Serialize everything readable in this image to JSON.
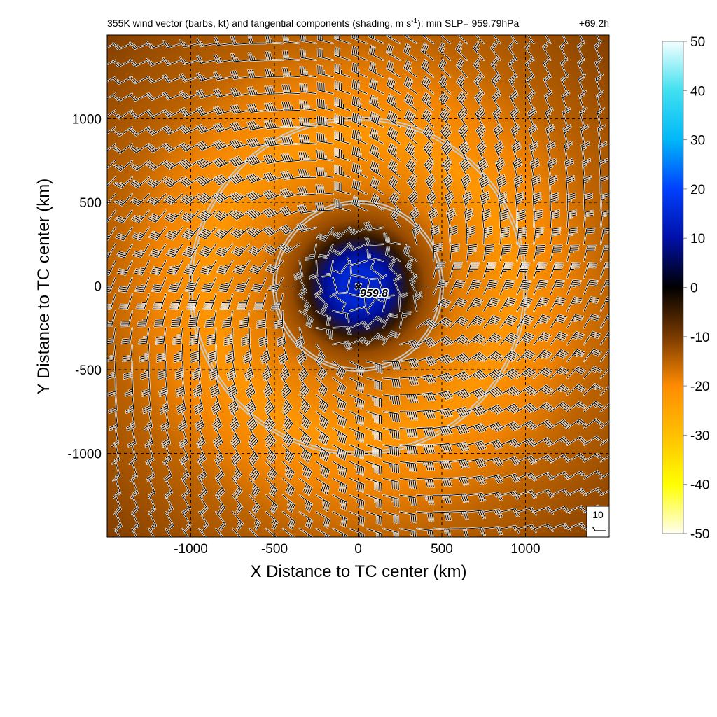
{
  "figure": {
    "title_main": "355K wind vector (barbs, kt) and tangential components (shading, m s",
    "title_sup": "-1",
    "title_end": "); min SLP= 959.79hPa",
    "time_label": "+69.2h"
  },
  "chart_data": {
    "type": "heatmap",
    "title": "355K wind vector (barbs, kt) and tangential components (shading, m s-1); min SLP= 959.79hPa",
    "xlabel": "X Distance to TC center (km)",
    "ylabel": "Y Distance to TC center (km)",
    "xlim": [
      -1500,
      1500
    ],
    "ylim": [
      -1500,
      1500
    ],
    "xticks": [
      -1000,
      -500,
      0,
      500,
      1000
    ],
    "yticks": [
      1000,
      500,
      0,
      -500,
      -1000
    ],
    "xtick_labels": [
      "-1000",
      "-500",
      "0",
      "500",
      "1000"
    ],
    "ytick_labels": [
      "1000",
      "500",
      "0",
      "-500",
      "-1000"
    ],
    "grid": true,
    "grid_style": "dashed",
    "range_rings_km": [
      500,
      1000
    ],
    "center_marker": {
      "x": 0,
      "y": 0,
      "label": "959.8"
    },
    "colorbar": {
      "min": -50,
      "max": 50,
      "ticks": [
        50,
        40,
        30,
        20,
        10,
        0,
        -10,
        -20,
        -30,
        -40,
        -50
      ],
      "tick_labels": [
        "50",
        "40",
        "30",
        "20",
        "10",
        "0",
        "-10",
        "-20",
        "-30",
        "-40",
        "-50"
      ],
      "stops": [
        {
          "v": 50,
          "c": "#f4ffff"
        },
        {
          "v": 40,
          "c": "#40e0f0"
        },
        {
          "v": 30,
          "c": "#00b8f8"
        },
        {
          "v": 20,
          "c": "#0040ff"
        },
        {
          "v": 10,
          "c": "#0010a8"
        },
        {
          "v": 0,
          "c": "#000000"
        },
        {
          "v": -10,
          "c": "#7a3a00"
        },
        {
          "v": -20,
          "c": "#ff8c00"
        },
        {
          "v": -30,
          "c": "#ffc000"
        },
        {
          "v": -40,
          "c": "#ffff00"
        },
        {
          "v": -50,
          "c": "#fffef0"
        }
      ]
    },
    "tangential_wind_profile": [
      {
        "r_km": 0,
        "v": 12
      },
      {
        "r_km": 100,
        "v": 15
      },
      {
        "r_km": 200,
        "v": 9
      },
      {
        "r_km": 300,
        "v": -4
      },
      {
        "r_km": 400,
        "v": -12
      },
      {
        "r_km": 600,
        "v": -18
      },
      {
        "r_km": 900,
        "v": -22
      },
      {
        "r_km": 1200,
        "v": -19
      },
      {
        "r_km": 1500,
        "v": -15
      },
      {
        "r_km": 2200,
        "v": -10
      }
    ],
    "barb_spacing_km": 100,
    "reference_barb": {
      "label": "10",
      "speed_kt": 10
    }
  },
  "colors": {
    "ring": "#c8c8c8",
    "grid": "#000000",
    "barb": "#000000",
    "barb_halo": "#ffffff"
  }
}
